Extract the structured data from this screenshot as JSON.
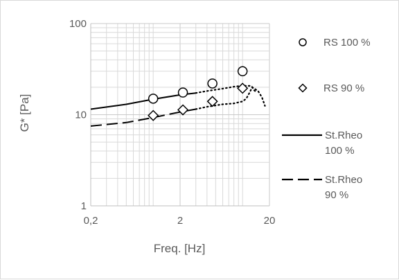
{
  "chart_data": {
    "type": "scatter",
    "title": "",
    "xlabel": "Freq. [Hz]",
    "ylabel": "G* [Pa]",
    "x_scale": "log",
    "y_scale": "log",
    "xlim": [
      0.2,
      20
    ],
    "ylim": [
      1,
      100
    ],
    "x_tick_labels": [
      "0,2",
      "2",
      "20"
    ],
    "y_tick_labels": [
      "1",
      "10",
      "100"
    ],
    "grid": true,
    "legend_position": "right",
    "series": [
      {
        "name": "RS 100 %",
        "kind": "markers",
        "marker": "circle",
        "x": [
          1.0,
          2.15,
          4.6,
          10.0
        ],
        "y": [
          15.0,
          17.5,
          22.0,
          30.0
        ]
      },
      {
        "name": "RS 90 %",
        "kind": "markers",
        "marker": "diamond",
        "x": [
          1.0,
          2.15,
          4.6,
          10.0
        ],
        "y": [
          9.8,
          11.3,
          14.0,
          19.5
        ]
      },
      {
        "name": "St.Rheo 100 %",
        "kind": "line",
        "dash": "solid",
        "x": [
          0.2,
          0.5,
          1.0,
          2.0,
          3.0
        ],
        "y": [
          11.5,
          13.0,
          14.8,
          16.5,
          17.3
        ]
      },
      {
        "name": "St.Rheo 90 %",
        "kind": "line",
        "dash": "dashed",
        "x": [
          0.2,
          0.5,
          1.0,
          2.0,
          3.0
        ],
        "y": [
          7.5,
          8.2,
          9.3,
          10.7,
          11.5
        ]
      },
      {
        "name": "",
        "kind": "line",
        "dash": "dotted",
        "x": [
          3.0,
          4.0,
          6.0,
          8.0,
          10.0,
          12.0,
          13.5,
          15.0,
          16.5,
          17.8
        ],
        "y": [
          17.3,
          18.2,
          19.3,
          20.3,
          20.8,
          20.7,
          19.5,
          18.0,
          15.5,
          12.5
        ]
      },
      {
        "name": "",
        "kind": "line",
        "dash": "dotted",
        "x": [
          3.0,
          4.0,
          6.0,
          8.0,
          10.0,
          11.0,
          12.0,
          12.8,
          13.5,
          14.5
        ],
        "y": [
          11.5,
          12.2,
          13.0,
          13.3,
          14.0,
          15.0,
          17.5,
          20.0,
          18.5,
          17.5
        ]
      }
    ],
    "legend": [
      {
        "label_lines": [
          "RS 100 %"
        ],
        "symbol": "circle"
      },
      {
        "label_lines": [
          "RS 90 %"
        ],
        "symbol": "diamond"
      },
      {
        "label_lines": [
          "St.Rheo",
          "100 %"
        ],
        "symbol": "solid-line"
      },
      {
        "label_lines": [
          "St.Rheo",
          "90 %"
        ],
        "symbol": "dashed-line"
      }
    ],
    "colors": {
      "text": "#595959",
      "grid": "#d9d9d9",
      "axis": "#bfbfbf",
      "series": "#000000"
    }
  }
}
